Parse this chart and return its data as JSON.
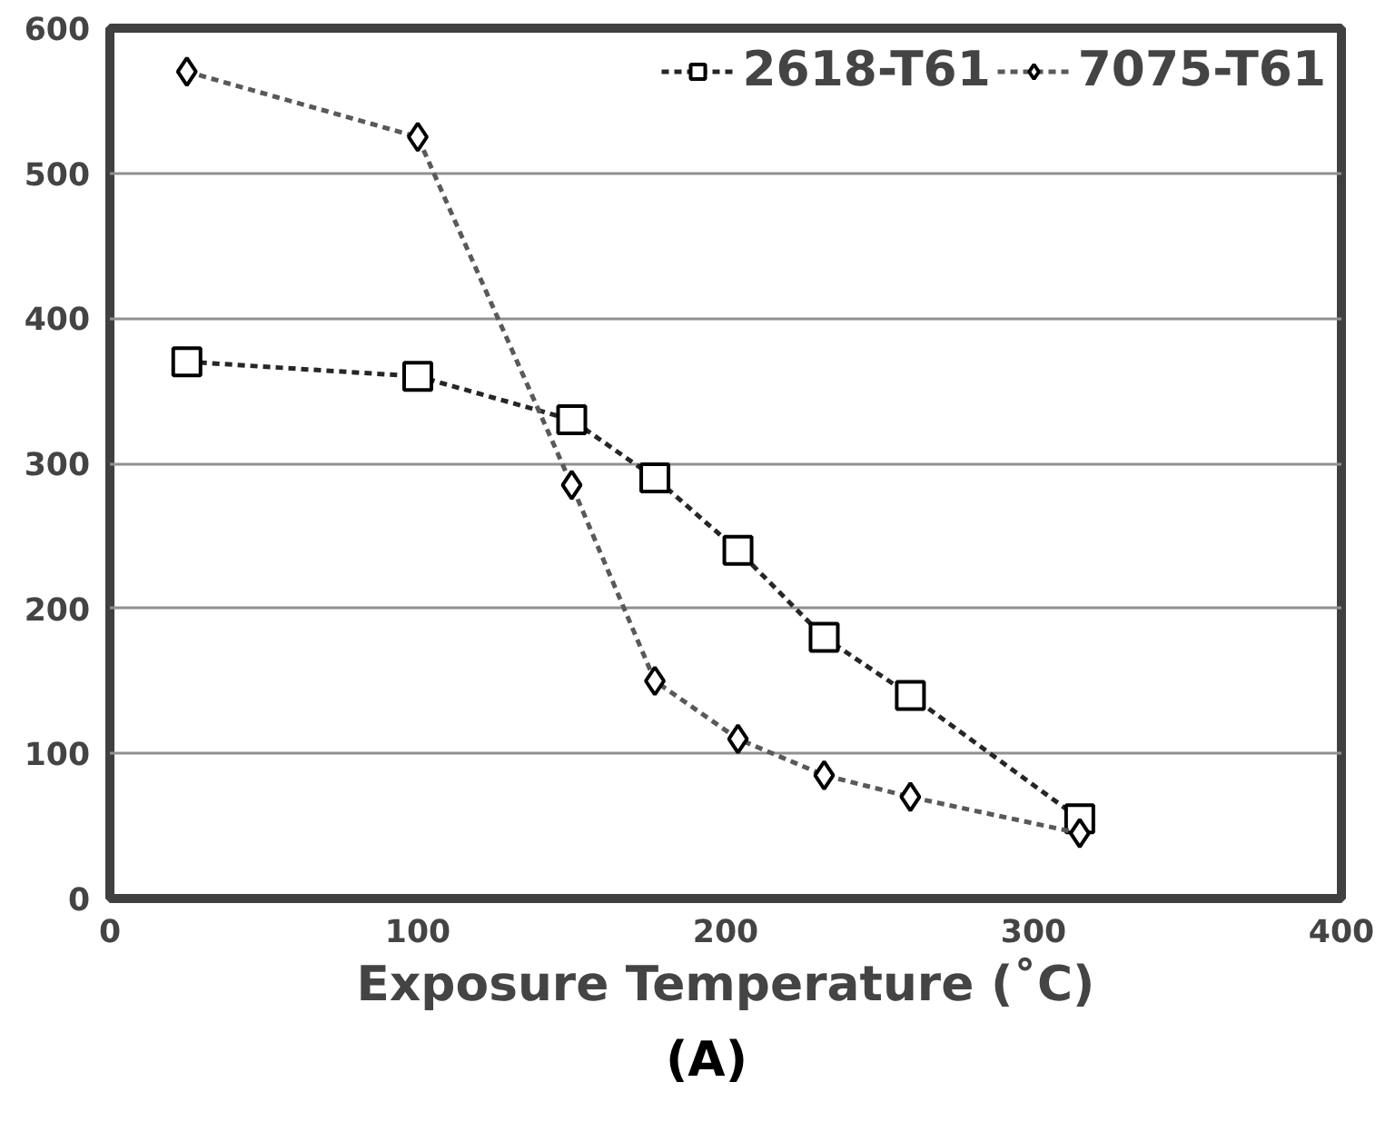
{
  "chart_data": {
    "type": "line",
    "xlabel": "Exposure Temperature (˚C)",
    "annotations": [
      "(A)"
    ],
    "xlim": [
      0,
      400
    ],
    "xticks": [
      0,
      100,
      200,
      300,
      400
    ],
    "ylim": [
      0,
      600
    ],
    "yticks": [
      0,
      100,
      200,
      300,
      400,
      500,
      600
    ],
    "grid": "y",
    "legend": "top right",
    "line_style": "dashed",
    "series": [
      {
        "name": "2618-T61",
        "color": "#262626",
        "marker": "square",
        "x": [
          25,
          100,
          150,
          177,
          204,
          232,
          260,
          315
        ],
        "values": [
          370,
          360,
          330,
          290,
          240,
          180,
          140,
          55
        ]
      },
      {
        "name": "7075-T61",
        "color": "#595959",
        "marker": "diamond",
        "x": [
          25,
          100,
          150,
          177,
          204,
          232,
          260,
          315
        ],
        "values": [
          570,
          525,
          285,
          150,
          110,
          85,
          70,
          45
        ]
      }
    ]
  }
}
